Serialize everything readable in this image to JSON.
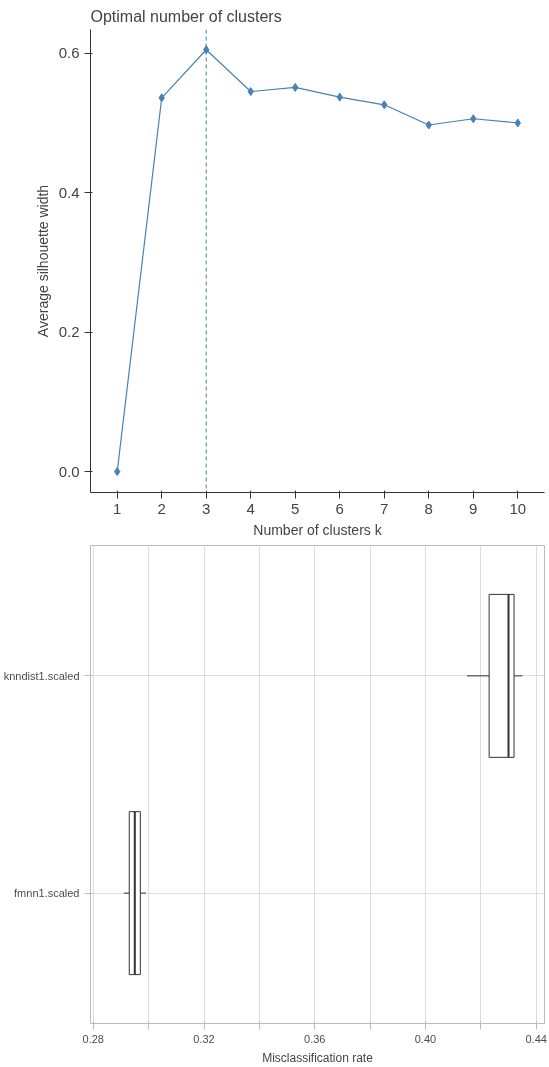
{
  "chart_data": [
    {
      "type": "line",
      "title": "Optimal number of clusters",
      "xlabel": "Number of clusters k",
      "ylabel": "Average silhouette width",
      "x": [
        1,
        2,
        3,
        4,
        5,
        6,
        7,
        8,
        9,
        10
      ],
      "series": [
        {
          "color": "#4682b4",
          "values": [
            0.0,
            0.536,
            0.605,
            0.545,
            0.551,
            0.537,
            0.526,
            0.497,
            0.506,
            0.5
          ]
        }
      ],
      "xlim": [
        0.4,
        10.6
      ],
      "xticks": [
        1,
        2,
        3,
        4,
        5,
        6,
        7,
        8,
        9,
        10
      ],
      "ylim": [
        -0.03,
        0.634
      ],
      "yticks": [
        {
          "value": 0,
          "label": "0.0"
        },
        0.2,
        0.4,
        0.6
      ],
      "ref_lines": [
        {
          "axis": "x",
          "value": 3,
          "color": "#4682b4",
          "line_style": "dashed"
        }
      ],
      "marker": "diamond",
      "grid": false
    },
    {
      "type": "box",
      "orientation": "horizontal",
      "xlabel": "Misclassification rate",
      "categories": [
        "knndist1.scaled",
        "fmnn1.scaled"
      ],
      "boxes": [
        {
          "low": 0.415,
          "q1": 0.423,
          "median": 0.43,
          "q3": 0.432,
          "high": 0.435
        },
        {
          "low": 0.291,
          "q1": 0.293,
          "median": 0.295,
          "q3": 0.297,
          "high": 0.299
        }
      ],
      "xlim": [
        0.279,
        0.443
      ],
      "xticks": [
        0.28,
        {
          "value": 0.3,
          "label": null
        },
        0.32,
        {
          "value": 0.34,
          "label": null
        },
        0.36,
        {
          "value": 0.38,
          "label": null
        },
        {
          "value": 0.4,
          "label": "0.40"
        },
        {
          "value": 0.42,
          "label": null
        },
        0.44
      ],
      "grid": true
    }
  ]
}
